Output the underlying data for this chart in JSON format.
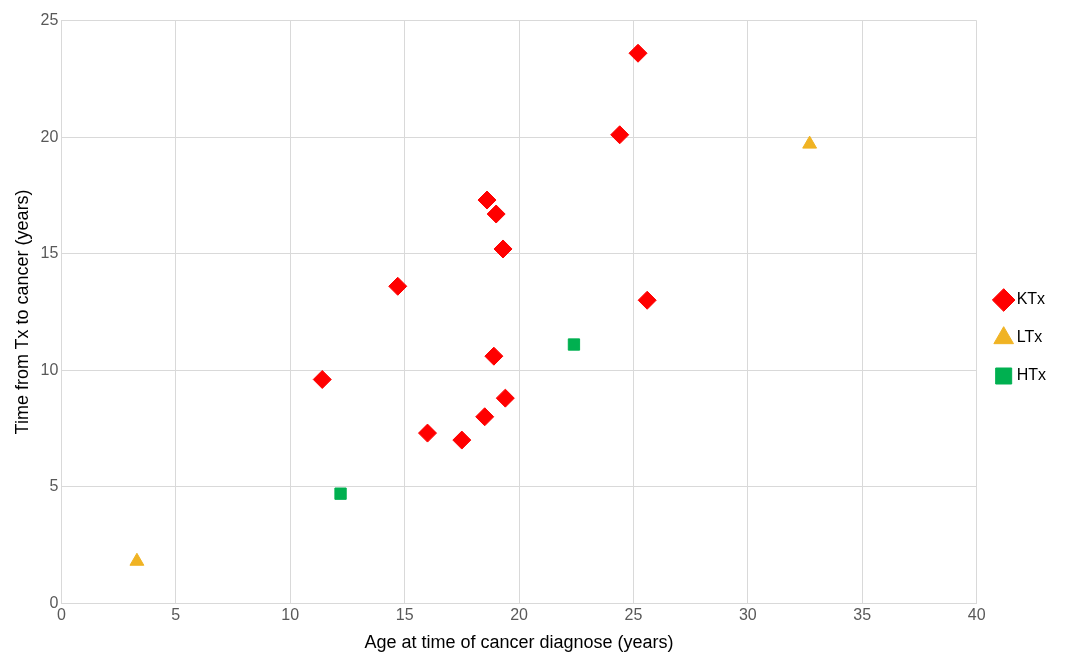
{
  "chart_data": {
    "type": "scatter",
    "xlabel": "Age at time of cancer diagnose (years)",
    "ylabel": "Time from Tx to cancer (years)",
    "xlim": [
      0,
      40
    ],
    "xticks": [
      0,
      5,
      10,
      15,
      20,
      25,
      30,
      35,
      40
    ],
    "ylim": [
      0,
      25
    ],
    "yticks": [
      0,
      5,
      10,
      15,
      20,
      25
    ],
    "grid": true,
    "legend": "right",
    "series": [
      {
        "name": "KTx",
        "color": "#ff0000",
        "marker": "diamond",
        "x": [
          25.2,
          24.4,
          18.6,
          19.0,
          19.3,
          14.7,
          25.6,
          18.9,
          11.4,
          19.4,
          18.5,
          16.0,
          17.5
        ],
        "values": [
          23.6,
          20.1,
          17.3,
          16.7,
          15.2,
          13.6,
          13.0,
          10.6,
          9.6,
          8.8,
          8.0,
          7.3,
          7.0
        ]
      },
      {
        "name": "LTx",
        "color": "#f0b323",
        "marker": "triangle",
        "x": [
          3.3,
          32.7
        ],
        "values": [
          1.8,
          19.7
        ]
      },
      {
        "name": "HTx",
        "color": "#00b050",
        "marker": "square",
        "x": [
          22.4,
          12.2
        ],
        "values": [
          11.1,
          4.7
        ]
      }
    ]
  }
}
